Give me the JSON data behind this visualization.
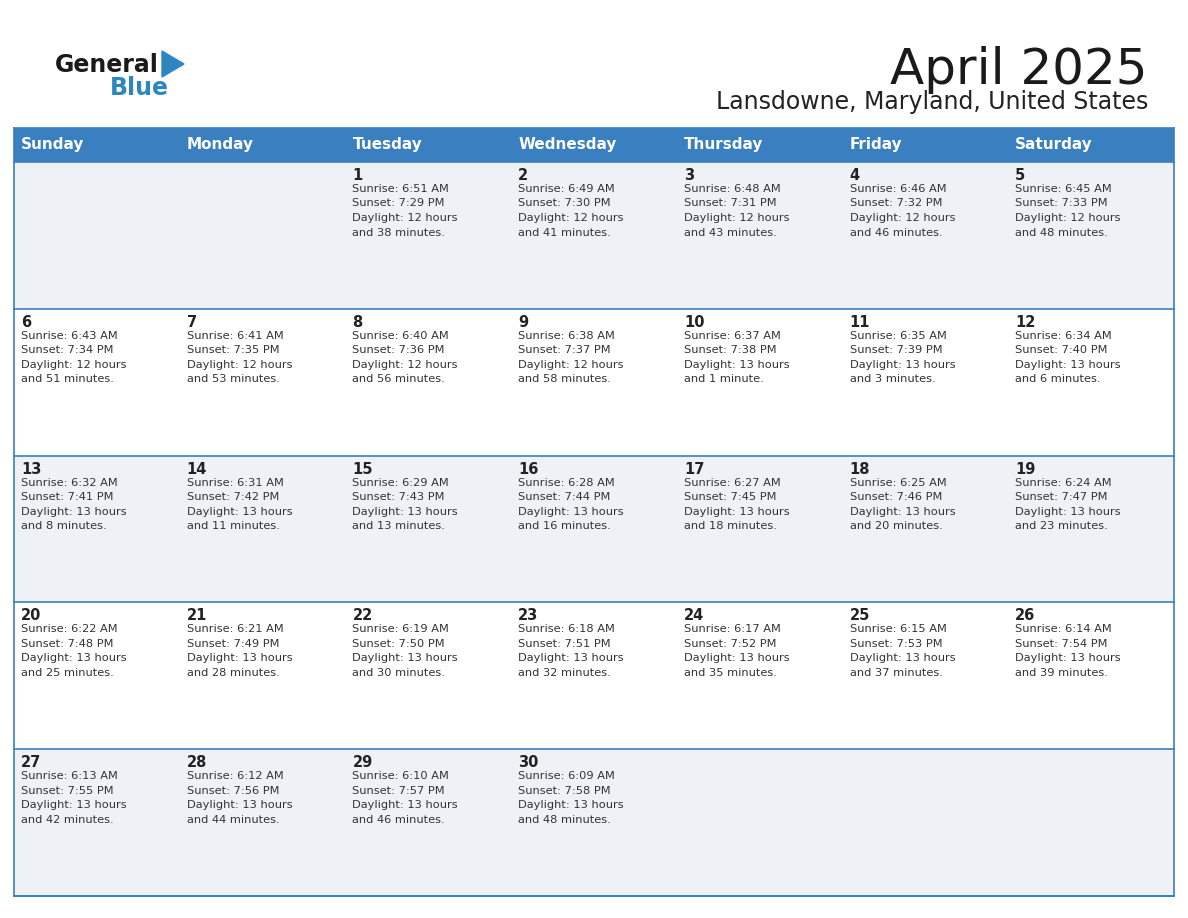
{
  "title": "April 2025",
  "subtitle": "Lansdowne, Maryland, United States",
  "days_of_week": [
    "Sunday",
    "Monday",
    "Tuesday",
    "Wednesday",
    "Thursday",
    "Friday",
    "Saturday"
  ],
  "header_bg": "#3a7fbf",
  "header_text_color": "#ffffff",
  "bg_color": "#ffffff",
  "cell_bg_odd": "#eef2f7",
  "cell_bg_even": "#ffffff",
  "grid_color": "#3a7fbf",
  "text_color": "#333333",
  "day_num_color": "#222222",
  "title_color": "#1a1a1a",
  "subtitle_color": "#222222",
  "logo_black": "#1a1a1a",
  "logo_blue": "#2e86c1",
  "weeks": [
    [
      {
        "day": null,
        "sunrise": null,
        "sunset": null,
        "daylight": null
      },
      {
        "day": null,
        "sunrise": null,
        "sunset": null,
        "daylight": null
      },
      {
        "day": 1,
        "sunrise": "6:51 AM",
        "sunset": "7:29 PM",
        "daylight": "12 hours and 38 minutes."
      },
      {
        "day": 2,
        "sunrise": "6:49 AM",
        "sunset": "7:30 PM",
        "daylight": "12 hours and 41 minutes."
      },
      {
        "day": 3,
        "sunrise": "6:48 AM",
        "sunset": "7:31 PM",
        "daylight": "12 hours and 43 minutes."
      },
      {
        "day": 4,
        "sunrise": "6:46 AM",
        "sunset": "7:32 PM",
        "daylight": "12 hours and 46 minutes."
      },
      {
        "day": 5,
        "sunrise": "6:45 AM",
        "sunset": "7:33 PM",
        "daylight": "12 hours and 48 minutes."
      }
    ],
    [
      {
        "day": 6,
        "sunrise": "6:43 AM",
        "sunset": "7:34 PM",
        "daylight": "12 hours and 51 minutes."
      },
      {
        "day": 7,
        "sunrise": "6:41 AM",
        "sunset": "7:35 PM",
        "daylight": "12 hours and 53 minutes."
      },
      {
        "day": 8,
        "sunrise": "6:40 AM",
        "sunset": "7:36 PM",
        "daylight": "12 hours and 56 minutes."
      },
      {
        "day": 9,
        "sunrise": "6:38 AM",
        "sunset": "7:37 PM",
        "daylight": "12 hours and 58 minutes."
      },
      {
        "day": 10,
        "sunrise": "6:37 AM",
        "sunset": "7:38 PM",
        "daylight": "13 hours and 1 minute."
      },
      {
        "day": 11,
        "sunrise": "6:35 AM",
        "sunset": "7:39 PM",
        "daylight": "13 hours and 3 minutes."
      },
      {
        "day": 12,
        "sunrise": "6:34 AM",
        "sunset": "7:40 PM",
        "daylight": "13 hours and 6 minutes."
      }
    ],
    [
      {
        "day": 13,
        "sunrise": "6:32 AM",
        "sunset": "7:41 PM",
        "daylight": "13 hours and 8 minutes."
      },
      {
        "day": 14,
        "sunrise": "6:31 AM",
        "sunset": "7:42 PM",
        "daylight": "13 hours and 11 minutes."
      },
      {
        "day": 15,
        "sunrise": "6:29 AM",
        "sunset": "7:43 PM",
        "daylight": "13 hours and 13 minutes."
      },
      {
        "day": 16,
        "sunrise": "6:28 AM",
        "sunset": "7:44 PM",
        "daylight": "13 hours and 16 minutes."
      },
      {
        "day": 17,
        "sunrise": "6:27 AM",
        "sunset": "7:45 PM",
        "daylight": "13 hours and 18 minutes."
      },
      {
        "day": 18,
        "sunrise": "6:25 AM",
        "sunset": "7:46 PM",
        "daylight": "13 hours and 20 minutes."
      },
      {
        "day": 19,
        "sunrise": "6:24 AM",
        "sunset": "7:47 PM",
        "daylight": "13 hours and 23 minutes."
      }
    ],
    [
      {
        "day": 20,
        "sunrise": "6:22 AM",
        "sunset": "7:48 PM",
        "daylight": "13 hours and 25 minutes."
      },
      {
        "day": 21,
        "sunrise": "6:21 AM",
        "sunset": "7:49 PM",
        "daylight": "13 hours and 28 minutes."
      },
      {
        "day": 22,
        "sunrise": "6:19 AM",
        "sunset": "7:50 PM",
        "daylight": "13 hours and 30 minutes."
      },
      {
        "day": 23,
        "sunrise": "6:18 AM",
        "sunset": "7:51 PM",
        "daylight": "13 hours and 32 minutes."
      },
      {
        "day": 24,
        "sunrise": "6:17 AM",
        "sunset": "7:52 PM",
        "daylight": "13 hours and 35 minutes."
      },
      {
        "day": 25,
        "sunrise": "6:15 AM",
        "sunset": "7:53 PM",
        "daylight": "13 hours and 37 minutes."
      },
      {
        "day": 26,
        "sunrise": "6:14 AM",
        "sunset": "7:54 PM",
        "daylight": "13 hours and 39 minutes."
      }
    ],
    [
      {
        "day": 27,
        "sunrise": "6:13 AM",
        "sunset": "7:55 PM",
        "daylight": "13 hours and 42 minutes."
      },
      {
        "day": 28,
        "sunrise": "6:12 AM",
        "sunset": "7:56 PM",
        "daylight": "13 hours and 44 minutes."
      },
      {
        "day": 29,
        "sunrise": "6:10 AM",
        "sunset": "7:57 PM",
        "daylight": "13 hours and 46 minutes."
      },
      {
        "day": 30,
        "sunrise": "6:09 AM",
        "sunset": "7:58 PM",
        "daylight": "13 hours and 48 minutes."
      },
      {
        "day": null,
        "sunrise": null,
        "sunset": null,
        "daylight": null
      },
      {
        "day": null,
        "sunrise": null,
        "sunset": null,
        "daylight": null
      },
      {
        "day": null,
        "sunrise": null,
        "sunset": null,
        "daylight": null
      }
    ]
  ]
}
